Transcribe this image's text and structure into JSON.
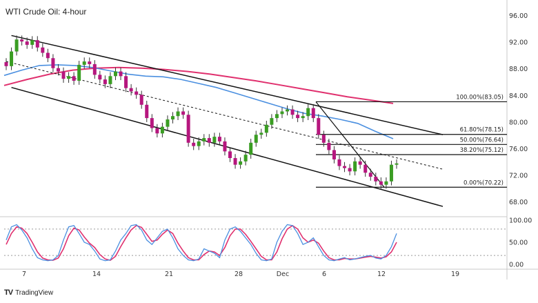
{
  "chart_data": {
    "type": "candlestick",
    "title": "WTI Crude Oil: 4-hour",
    "price_axis": {
      "ylim": [
        66,
        97.5
      ],
      "ticks": [
        "96.00",
        "92.00",
        "88.00",
        "84.00",
        "80.00",
        "76.00",
        "72.00",
        "68.00"
      ]
    },
    "stoch_axis": {
      "ylim": [
        -5,
        105
      ],
      "ticks": [
        "100.00",
        "50.00",
        "0.00"
      ]
    },
    "x_ticks": [
      "7",
      "14",
      "21",
      "28",
      "Dec",
      "6",
      "12",
      "19"
    ],
    "fib_levels": [
      {
        "label": "100.00%(83.05)",
        "value": 83.05
      },
      {
        "label": "61.80%(78.15)",
        "value": 78.15
      },
      {
        "label": "50.00%(76.64)",
        "value": 76.64
      },
      {
        "label": "38.20%(75.12)",
        "value": 75.12
      },
      {
        "label": "0.00%(70.22)",
        "value": 70.22
      }
    ],
    "closes": [
      88.4,
      90.6,
      92.4,
      92.1,
      91.6,
      92.3,
      91.2,
      90.4,
      89.6,
      88.1,
      87.6,
      86.5,
      86.9,
      86.2,
      88.6,
      89.1,
      88.7,
      87.1,
      86.4,
      85.7,
      86.9,
      87.6,
      86.9,
      85.1,
      84.6,
      84.1,
      82.6,
      80.6,
      79.1,
      78.3,
      79.3,
      80.4,
      80.9,
      81.6,
      81.1,
      76.9,
      76.4,
      77.1,
      77.6,
      76.9,
      77.8,
      77.1,
      75.6,
      74.6,
      73.6,
      74.1,
      75.1,
      76.9,
      78.1,
      78.4,
      79.6,
      80.6,
      81.2,
      81.6,
      81.9,
      81.1,
      80.6,
      80.9,
      82.1,
      80.6,
      78.1,
      76.9,
      75.8,
      74.4,
      73.4,
      73.1,
      72.6,
      74.1,
      73.6,
      72.4,
      71.8,
      71.1,
      70.6,
      71.1,
      73.6,
      73.8
    ],
    "ma_fast": [
      87.0,
      87.8,
      88.5,
      88.6,
      88.5,
      88.2,
      87.7,
      87.2,
      86.9,
      86.8,
      86.4,
      85.8,
      85.2,
      84.4,
      83.6,
      82.8,
      82.0,
      81.3,
      80.9,
      80.4,
      79.8,
      78.6,
      77.5
    ],
    "ma_slow": [
      85.5,
      86.4,
      87.2,
      87.8,
      88.1,
      88.2,
      88.1,
      87.9,
      87.6,
      87.2,
      86.7,
      86.2,
      85.6,
      85.0,
      84.4,
      83.8,
      83.3,
      82.8
    ],
    "stoch_k": [
      55,
      85,
      90,
      78,
      60,
      35,
      15,
      10,
      8,
      10,
      20,
      55,
      85,
      88,
      70,
      50,
      45,
      30,
      12,
      8,
      10,
      30,
      55,
      70,
      88,
      90,
      78,
      55,
      45,
      60,
      75,
      80,
      60,
      35,
      20,
      10,
      8,
      12,
      35,
      30,
      25,
      15,
      55,
      80,
      85,
      75,
      60,
      45,
      25,
      10,
      8,
      12,
      50,
      75,
      90,
      88,
      70,
      45,
      50,
      60,
      40,
      20,
      10,
      8,
      12,
      15,
      10,
      12,
      15,
      18,
      20,
      14,
      12,
      20,
      40,
      70
    ],
    "stoch_d": [
      45,
      70,
      85,
      82,
      70,
      50,
      28,
      14,
      10,
      9,
      14,
      35,
      65,
      82,
      78,
      62,
      48,
      38,
      22,
      12,
      9,
      18,
      40,
      60,
      78,
      88,
      84,
      68,
      52,
      55,
      68,
      78,
      70,
      48,
      30,
      15,
      10,
      10,
      22,
      30,
      28,
      20,
      38,
      65,
      80,
      80,
      68,
      52,
      35,
      18,
      10,
      10,
      28,
      58,
      80,
      88,
      80,
      60,
      50,
      55,
      48,
      30,
      15,
      10,
      10,
      13,
      12,
      12,
      14,
      16,
      18,
      16,
      14,
      17,
      28,
      50
    ],
    "stoch_levels": [
      80,
      20
    ]
  },
  "branding": {
    "name": "TradingView",
    "logo": "TV"
  }
}
